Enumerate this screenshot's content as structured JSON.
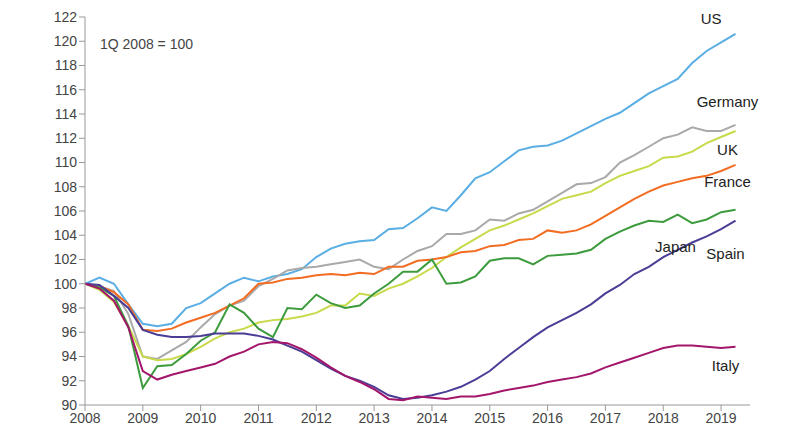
{
  "chart_data": {
    "type": "line",
    "annotation": "1Q 2008 = 100",
    "x": [
      2008,
      2008.25,
      2008.5,
      2008.75,
      2009,
      2009.25,
      2009.5,
      2009.75,
      2010,
      2010.25,
      2010.5,
      2010.75,
      2011,
      2011.25,
      2011.5,
      2011.75,
      2012,
      2012.25,
      2012.5,
      2012.75,
      2013,
      2013.25,
      2013.5,
      2013.75,
      2014,
      2014.25,
      2014.5,
      2014.75,
      2015,
      2015.25,
      2015.5,
      2015.75,
      2016,
      2016.25,
      2016.5,
      2016.75,
      2017,
      2017.25,
      2017.5,
      2017.75,
      2018,
      2018.25,
      2018.5,
      2018.75,
      2019,
      2019.25
    ],
    "xlim": [
      2008,
      2019.5
    ],
    "xticks": [
      2008,
      2009,
      2010,
      2011,
      2012,
      2013,
      2014,
      2015,
      2016,
      2017,
      2018,
      2019
    ],
    "ylim": [
      90,
      122
    ],
    "yticks": [
      90,
      92,
      94,
      96,
      98,
      100,
      102,
      104,
      106,
      108,
      110,
      112,
      114,
      116,
      118,
      120,
      122
    ],
    "grid": false,
    "series": [
      {
        "name": "US",
        "color": "#5aaee4",
        "values": [
          100,
          100.5,
          100.0,
          98.3,
          96.7,
          96.5,
          96.7,
          98.0,
          98.4,
          99.2,
          100.0,
          100.5,
          100.2,
          100.6,
          100.8,
          101.2,
          102.2,
          102.9,
          103.3,
          103.5,
          103.6,
          104.5,
          104.6,
          105.4,
          106.3,
          106.0,
          107.3,
          108.7,
          109.2,
          110.1,
          111.0,
          111.3,
          111.4,
          111.8,
          112.4,
          113.0,
          113.6,
          114.1,
          114.9,
          115.7,
          116.3,
          116.9,
          118.2,
          119.2,
          119.9,
          120.6
        ]
      },
      {
        "name": "Germany",
        "color": "#a9a9a9",
        "values": [
          100,
          99.8,
          99.4,
          97.5,
          94.0,
          93.8,
          94.5,
          95.2,
          96.4,
          97.5,
          98.2,
          98.6,
          99.8,
          100.4,
          101.1,
          101.3,
          101.4,
          101.6,
          101.8,
          102.0,
          101.4,
          101.2,
          102.0,
          102.7,
          103.1,
          104.1,
          104.1,
          104.4,
          105.3,
          105.2,
          105.8,
          106.1,
          106.8,
          107.5,
          108.2,
          108.3,
          108.8,
          110.0,
          110.6,
          111.3,
          112.0,
          112.3,
          112.9,
          112.6,
          112.6,
          113.1
        ]
      },
      {
        "name": "UK",
        "color": "#c8da4a",
        "values": [
          100,
          99.5,
          98.5,
          96.5,
          94.0,
          93.7,
          93.8,
          94.2,
          94.8,
          95.5,
          96.0,
          96.3,
          96.8,
          97.0,
          97.1,
          97.3,
          97.6,
          98.2,
          98.2,
          99.2,
          99.0,
          99.6,
          100.0,
          100.6,
          101.3,
          102.2,
          103.0,
          103.7,
          104.4,
          104.8,
          105.3,
          105.8,
          106.4,
          107.0,
          107.3,
          107.6,
          108.3,
          108.9,
          109.3,
          109.7,
          110.4,
          110.5,
          110.9,
          111.6,
          112.1,
          112.6
        ]
      },
      {
        "name": "France",
        "color": "#f26c22",
        "values": [
          100,
          99.8,
          99.3,
          98.3,
          96.2,
          96.1,
          96.3,
          96.8,
          97.2,
          97.6,
          98.2,
          98.8,
          100.0,
          100.1,
          100.4,
          100.5,
          100.7,
          100.8,
          100.7,
          100.9,
          100.8,
          101.4,
          101.4,
          101.9,
          102.0,
          102.2,
          102.6,
          102.7,
          103.1,
          103.2,
          103.6,
          103.7,
          104.4,
          104.2,
          104.4,
          104.9,
          105.6,
          106.3,
          107.0,
          107.6,
          108.1,
          108.4,
          108.7,
          108.9,
          109.3,
          109.8
        ]
      },
      {
        "name": "Japan",
        "color": "#3d9b3d",
        "values": [
          100,
          99.7,
          99.0,
          96.5,
          91.4,
          93.2,
          93.3,
          94.2,
          95.3,
          96.0,
          98.3,
          97.6,
          96.3,
          95.6,
          98.0,
          97.9,
          99.1,
          98.4,
          98.0,
          98.2,
          99.2,
          100.0,
          101.0,
          101.0,
          102.0,
          100.0,
          100.1,
          100.6,
          101.9,
          102.1,
          102.1,
          101.6,
          102.3,
          102.4,
          102.5,
          102.8,
          103.7,
          104.3,
          104.8,
          105.2,
          105.1,
          105.7,
          105.0,
          105.3,
          105.9,
          106.1
        ]
      },
      {
        "name": "Spain",
        "color": "#4a3d96",
        "values": [
          100,
          99.9,
          99.0,
          98.0,
          96.2,
          95.8,
          95.6,
          95.6,
          95.7,
          95.9,
          95.9,
          95.9,
          95.7,
          95.4,
          94.9,
          94.4,
          93.7,
          93.0,
          92.4,
          92.0,
          91.5,
          90.8,
          90.5,
          90.6,
          90.8,
          91.1,
          91.5,
          92.1,
          92.8,
          93.8,
          94.7,
          95.6,
          96.4,
          97.0,
          97.6,
          98.3,
          99.2,
          99.9,
          100.8,
          101.4,
          102.2,
          102.8,
          103.4,
          103.9,
          104.5,
          105.2
        ]
      },
      {
        "name": "Italy",
        "color": "#a3166b",
        "values": [
          100,
          99.6,
          98.6,
          96.4,
          92.8,
          92.1,
          92.5,
          92.8,
          93.1,
          93.4,
          94.0,
          94.4,
          95.0,
          95.2,
          95.1,
          94.6,
          93.9,
          93.1,
          92.4,
          91.9,
          91.3,
          90.5,
          90.4,
          90.7,
          90.6,
          90.5,
          90.7,
          90.7,
          90.9,
          91.2,
          91.4,
          91.6,
          91.9,
          92.1,
          92.3,
          92.6,
          93.1,
          93.5,
          93.9,
          94.3,
          94.7,
          94.9,
          94.9,
          94.8,
          94.7,
          94.8
        ]
      }
    ]
  }
}
